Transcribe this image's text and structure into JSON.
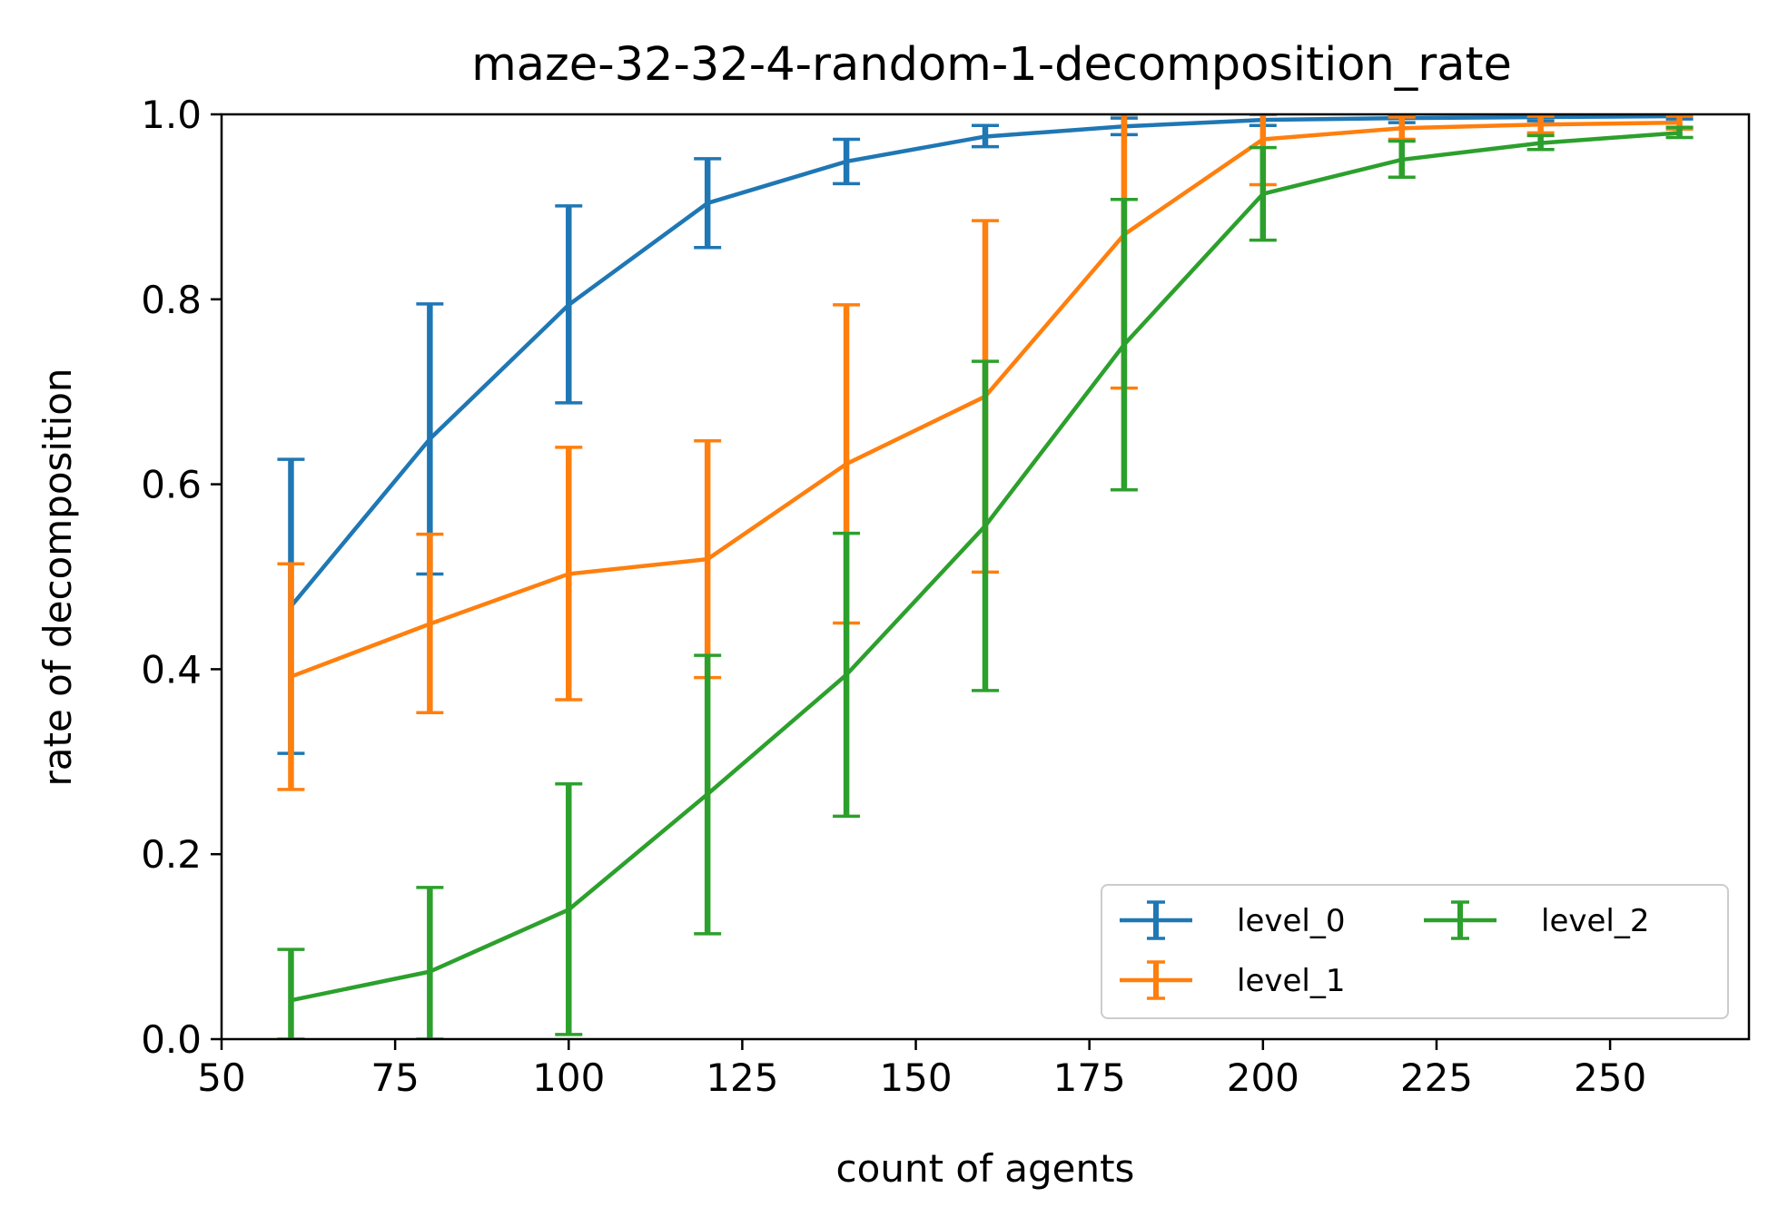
{
  "chart_data": {
    "type": "line",
    "title": "maze-32-32-4-random-1-decomposition_rate",
    "xlabel": "count of agents",
    "ylabel": "rate of decomposition",
    "xlim": [
      50,
      270
    ],
    "ylim": [
      0.0,
      1.0
    ],
    "xticks": [
      "50",
      "75",
      "100",
      "125",
      "150",
      "175",
      "200",
      "225",
      "250"
    ],
    "yticks": [
      "0.0",
      "0.2",
      "0.4",
      "0.6",
      "0.8",
      "1.0"
    ],
    "grid": false,
    "legend_position": "bottom-right",
    "legend_columns": 2,
    "error_bars": true,
    "series": [
      {
        "name": "level_0",
        "color": "#1f77b4",
        "x": [
          60,
          80,
          100,
          120,
          140,
          160,
          180,
          200,
          220,
          240,
          260
        ],
        "values": [
          0.468,
          0.649,
          0.794,
          0.904,
          0.949,
          0.976,
          0.987,
          0.994,
          0.996,
          0.997,
          0.998
        ],
        "err_low": [
          0.309,
          0.503,
          0.688,
          0.856,
          0.925,
          0.965,
          0.978,
          0.988,
          0.991,
          0.993,
          0.995
        ],
        "err_high": [
          0.627,
          0.795,
          0.901,
          0.952,
          0.973,
          0.988,
          0.996,
          1.0,
          1.0,
          1.0,
          1.0
        ]
      },
      {
        "name": "level_1",
        "color": "#ff7f0e",
        "x": [
          60,
          80,
          100,
          120,
          140,
          160,
          180,
          200,
          220,
          240,
          260
        ],
        "values": [
          0.392,
          0.449,
          0.503,
          0.519,
          0.622,
          0.695,
          0.87,
          0.973,
          0.985,
          0.989,
          0.991
        ],
        "err_low": [
          0.27,
          0.353,
          0.367,
          0.391,
          0.45,
          0.505,
          0.704,
          0.924,
          0.973,
          0.98,
          0.984
        ],
        "err_high": [
          0.514,
          0.546,
          0.64,
          0.647,
          0.794,
          0.885,
          1.0,
          1.0,
          0.997,
          0.998,
          0.998
        ]
      },
      {
        "name": "level_2",
        "color": "#2ca02c",
        "x": [
          60,
          80,
          100,
          120,
          140,
          160,
          180,
          200,
          220,
          240,
          260
        ],
        "values": [
          0.042,
          0.073,
          0.14,
          0.265,
          0.394,
          0.555,
          0.751,
          0.914,
          0.951,
          0.969,
          0.98
        ],
        "err_low": [
          0.0,
          0.0,
          0.005,
          0.114,
          0.241,
          0.377,
          0.594,
          0.864,
          0.932,
          0.962,
          0.975
        ],
        "err_high": [
          0.097,
          0.164,
          0.276,
          0.415,
          0.547,
          0.733,
          0.908,
          0.964,
          0.971,
          0.977,
          0.986
        ]
      }
    ]
  }
}
